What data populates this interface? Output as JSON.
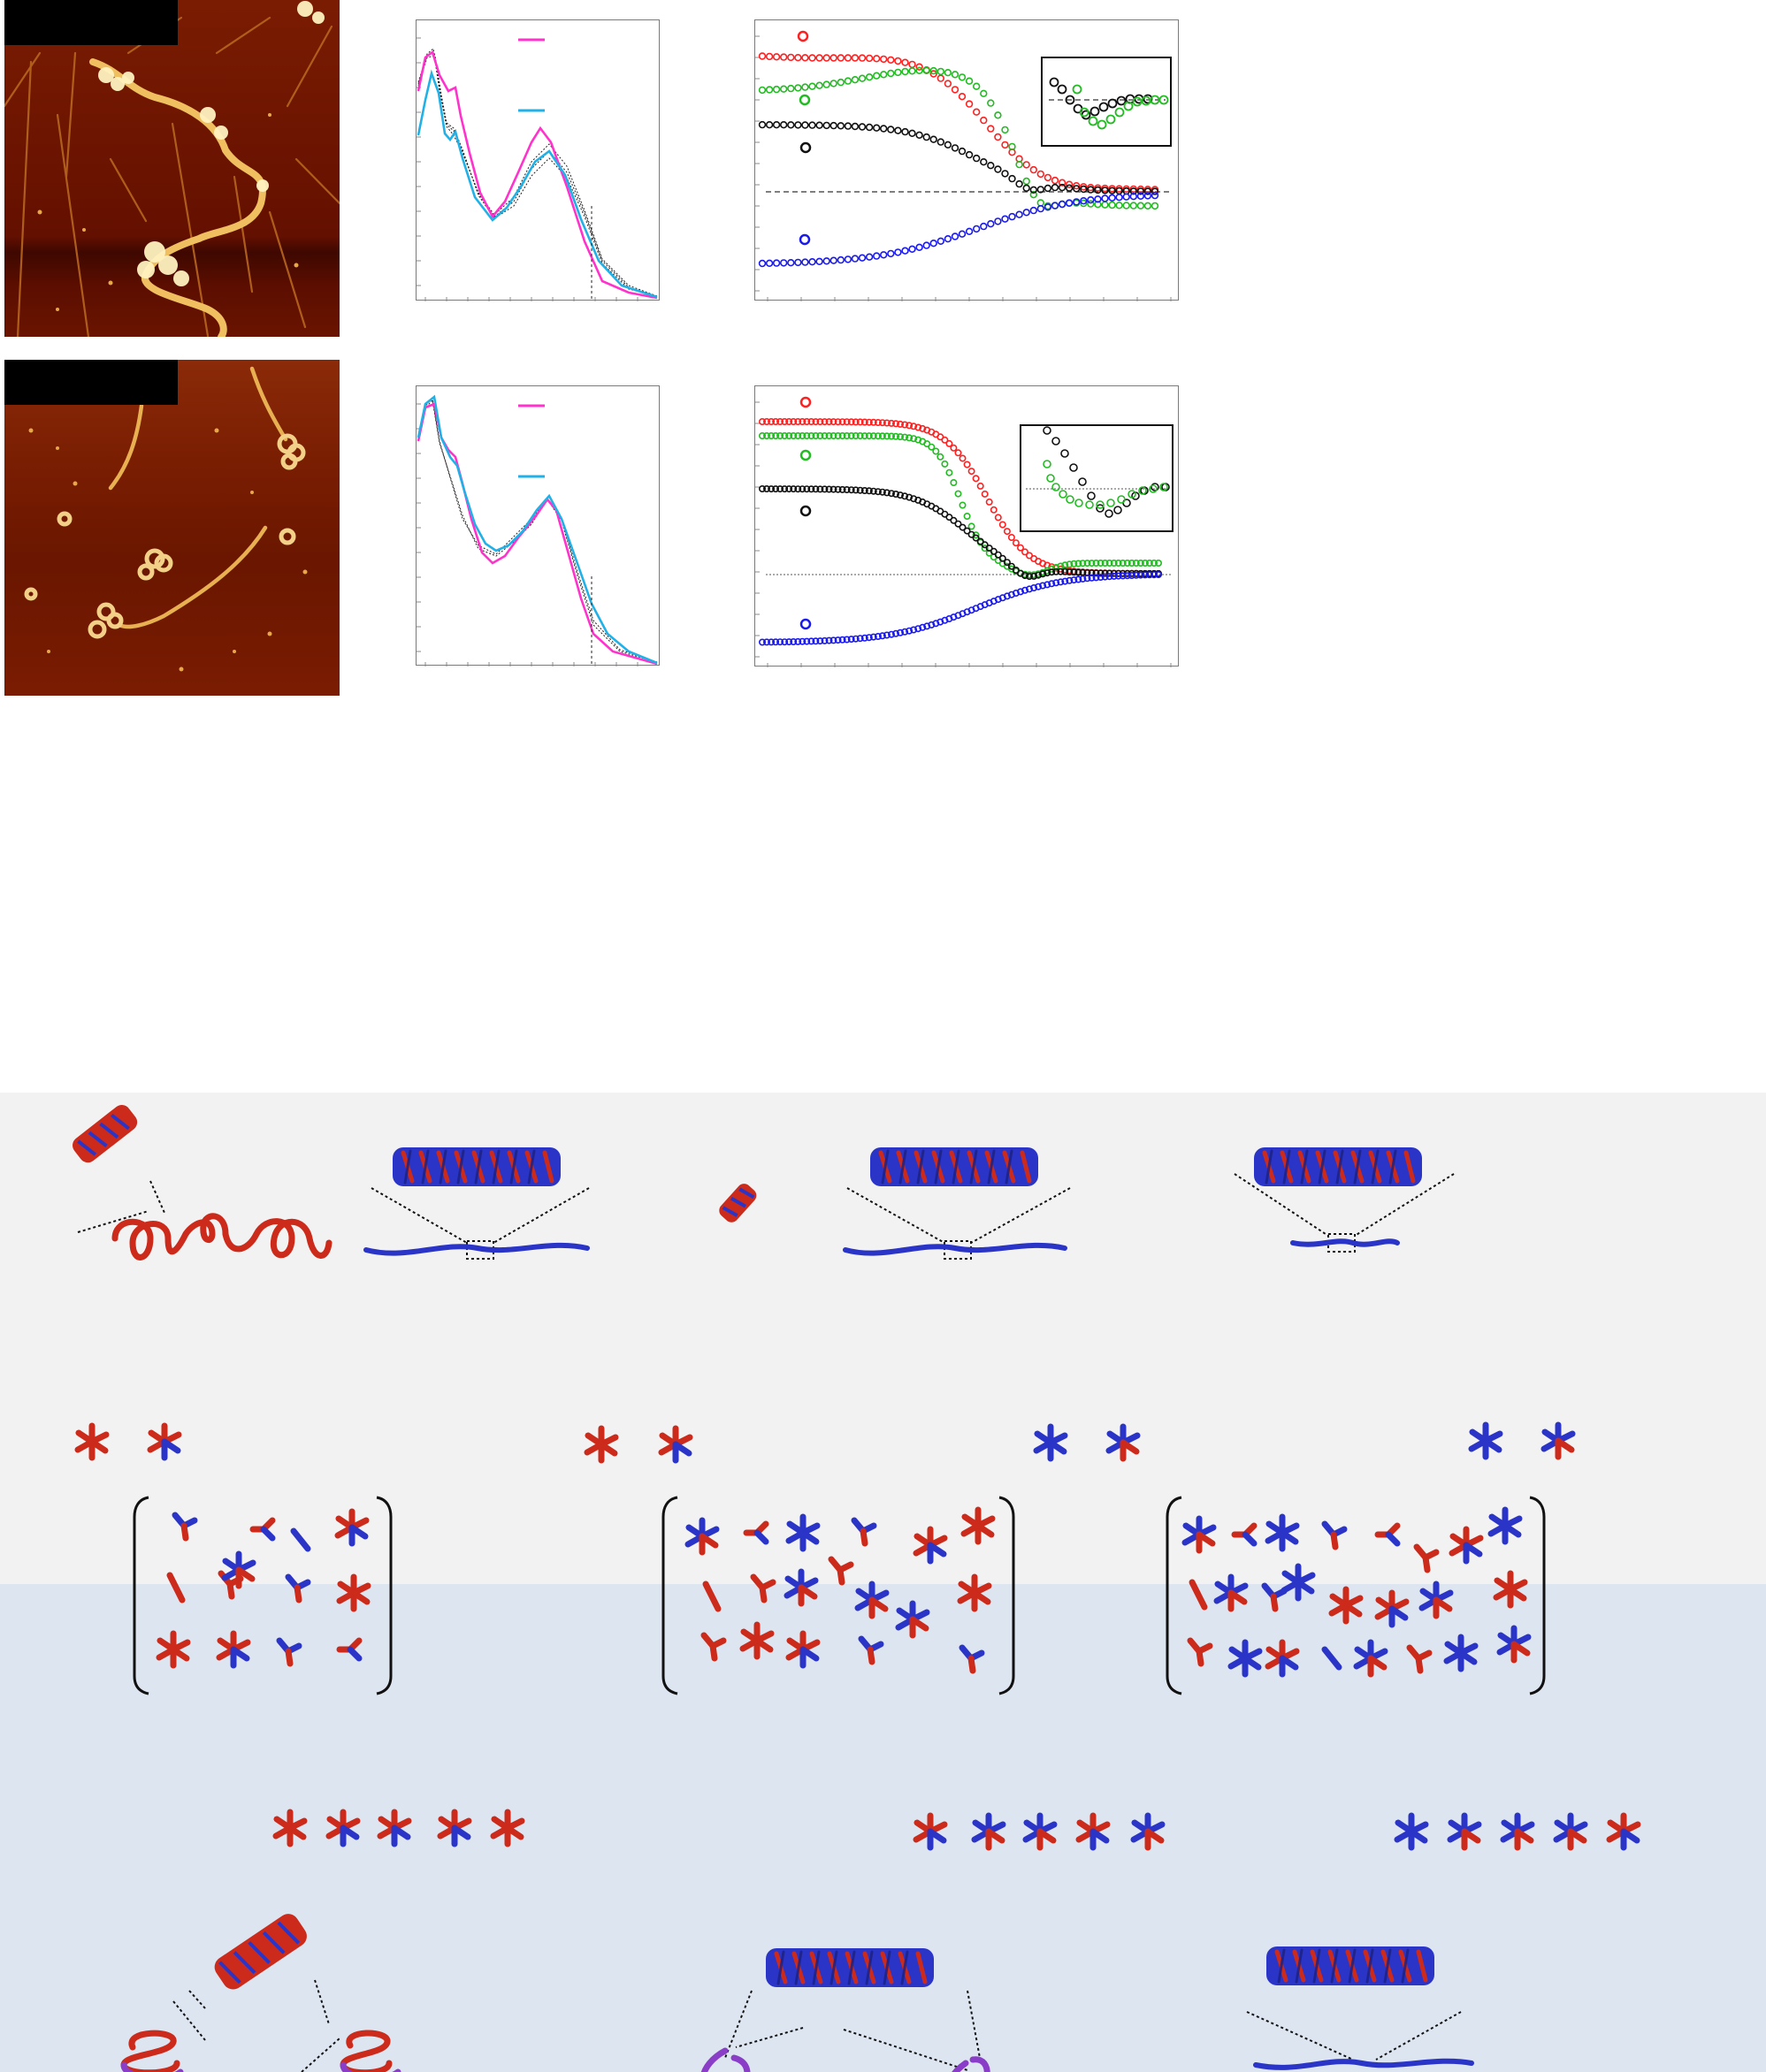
{
  "figure": {
    "colors": {
      "afm_background": "#6e1500",
      "afm_fiber": "#e0a44a",
      "afm_aggregate": "#fff3c8",
      "uv_magenta": "#ff33cc",
      "uv_cyan": "#21b1e6",
      "cd_red": "#ff2020",
      "cd_green": "#22bb22",
      "cd_black": "#111111",
      "cd_blue": "#1a1aee",
      "model_red": "#cc2a1a",
      "model_blue": "#2a35c8",
      "model_purple": "#8a3ec8",
      "band_grey": "#f2f2f2",
      "band_blue": "#dde5f1"
    },
    "top_row": {
      "afm_image": "afm-micrograph",
      "uv_plot": {
        "series": [
          "magenta",
          "cyan",
          "intermediate-dotted"
        ]
      },
      "cd_plot": {
        "series": [
          "red",
          "green",
          "black",
          "blue"
        ],
        "inset": true
      }
    },
    "middle_row": {
      "afm_image": "afm-micrograph",
      "uv_plot": {
        "series": [
          "magenta",
          "cyan",
          "intermediate-dotted"
        ]
      },
      "cd_plot": {
        "series": [
          "red",
          "green",
          "black",
          "blue"
        ],
        "inset": true
      }
    },
    "schematic": {
      "icons": [
        "helix-icon",
        "stack-icon",
        "monomer-star-icon",
        "bracket-icon"
      ]
    }
  }
}
